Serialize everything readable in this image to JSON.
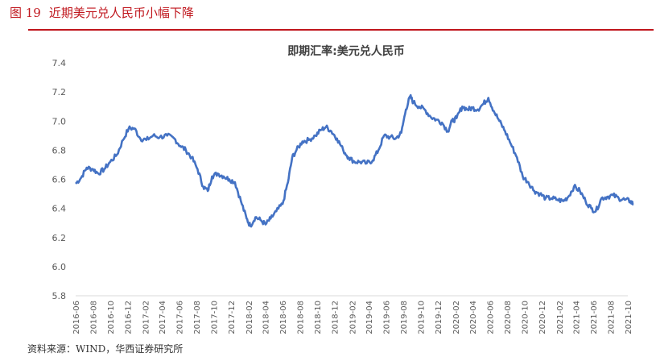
{
  "figure": {
    "number": "图 19",
    "caption": "近期美元兑人民币小幅下降",
    "source": "资料来源：WIND，华西证券研究所"
  },
  "colors": {
    "accent": "#c0161d",
    "series": "#4472c4",
    "axis": "#d9d9d9",
    "text": "#595959"
  },
  "chart_data": {
    "type": "line",
    "title": "即期汇率:美元兑人民币",
    "xlabel": "",
    "ylabel": "",
    "ylim": [
      5.8,
      7.4
    ],
    "yticks": [
      "5.8",
      "6.0",
      "6.2",
      "6.4",
      "6.6",
      "6.8",
      "7.0",
      "7.2",
      "7.4"
    ],
    "grid": false,
    "legend": "none",
    "x_range": [
      "2016-06",
      "2021-10"
    ],
    "xtick_labels": [
      "2016-06",
      "2016-08",
      "2016-10",
      "2016-12",
      "2017-02",
      "2017-04",
      "2017-06",
      "2017-08",
      "2017-10",
      "2017-12",
      "2018-02",
      "2018-04",
      "2018-06",
      "2018-08",
      "2018-10",
      "2018-12",
      "2019-02",
      "2019-04",
      "2019-06",
      "2019-08",
      "2019-10",
      "2019-12",
      "2020-02",
      "2020-04",
      "2020-06",
      "2020-08",
      "2020-10",
      "2020-12",
      "2021-02",
      "2021-04",
      "2021-06",
      "2021-08",
      "2021-10"
    ],
    "series": [
      {
        "name": "",
        "x": [
          "2016-06-01",
          "2016-06-20",
          "2016-07-10",
          "2016-08-01",
          "2016-08-20",
          "2016-09-10",
          "2016-10-01",
          "2016-10-25",
          "2016-11-15",
          "2016-12-05",
          "2016-12-25",
          "2017-01-15",
          "2017-02-05",
          "2017-03-01",
          "2017-03-25",
          "2017-04-20",
          "2017-05-15",
          "2017-06-05",
          "2017-06-25",
          "2017-07-15",
          "2017-08-05",
          "2017-08-25",
          "2017-09-10",
          "2017-09-25",
          "2017-10-15",
          "2017-11-05",
          "2017-11-25",
          "2017-12-15",
          "2018-01-05",
          "2018-01-25",
          "2018-02-07",
          "2018-02-25",
          "2018-03-15",
          "2018-04-02",
          "2018-04-20",
          "2018-05-10",
          "2018-06-01",
          "2018-06-20",
          "2018-07-05",
          "2018-07-20",
          "2018-08-10",
          "2018-09-01",
          "2018-09-25",
          "2018-10-15",
          "2018-11-01",
          "2018-11-20",
          "2018-12-10",
          "2019-01-01",
          "2019-01-20",
          "2019-02-10",
          "2019-03-01",
          "2019-03-25",
          "2019-04-15",
          "2019-05-05",
          "2019-05-25",
          "2019-06-15",
          "2019-07-05",
          "2019-07-25",
          "2019-08-10",
          "2019-08-25",
          "2019-09-05",
          "2019-09-25",
          "2019-10-15",
          "2019-11-05",
          "2019-11-25",
          "2019-12-15",
          "2020-01-05",
          "2020-01-20",
          "2020-02-05",
          "2020-02-25",
          "2020-03-15",
          "2020-04-01",
          "2020-04-20",
          "2020-05-10",
          "2020-05-27",
          "2020-06-15",
          "2020-07-05",
          "2020-07-25",
          "2020-08-15",
          "2020-09-05",
          "2020-09-25",
          "2020-10-15",
          "2020-11-05",
          "2020-11-25",
          "2020-12-15",
          "2021-01-05",
          "2021-01-25",
          "2021-02-15",
          "2021-03-05",
          "2021-03-25",
          "2021-04-15",
          "2021-05-05",
          "2021-05-25",
          "2021-06-10",
          "2021-06-30",
          "2021-07-20",
          "2021-08-10",
          "2021-08-30",
          "2021-09-20",
          "2021-10-10",
          "2021-10-20"
        ],
        "values": [
          6.57,
          6.61,
          6.68,
          6.67,
          6.64,
          6.67,
          6.72,
          6.77,
          6.87,
          6.95,
          6.95,
          6.88,
          6.87,
          6.9,
          6.89,
          6.9,
          6.88,
          6.83,
          6.8,
          6.75,
          6.67,
          6.55,
          6.52,
          6.62,
          6.64,
          6.62,
          6.6,
          6.58,
          6.45,
          6.33,
          6.28,
          6.34,
          6.32,
          6.29,
          6.33,
          6.38,
          6.43,
          6.58,
          6.75,
          6.8,
          6.86,
          6.87,
          6.9,
          6.94,
          6.96,
          6.93,
          6.88,
          6.8,
          6.75,
          6.72,
          6.72,
          6.71,
          6.73,
          6.8,
          6.9,
          6.89,
          6.88,
          6.92,
          7.08,
          7.17,
          7.13,
          7.1,
          7.08,
          7.03,
          7.01,
          6.99,
          6.93,
          7.0,
          7.02,
          7.1,
          7.08,
          7.09,
          7.08,
          7.12,
          7.16,
          7.07,
          7.0,
          6.93,
          6.84,
          6.75,
          6.62,
          6.58,
          6.52,
          6.5,
          6.47,
          6.47,
          6.46,
          6.45,
          6.48,
          6.55,
          6.52,
          6.45,
          6.4,
          6.38,
          6.47,
          6.48,
          6.49,
          6.47,
          6.46,
          6.45,
          6.43
        ]
      }
    ]
  }
}
